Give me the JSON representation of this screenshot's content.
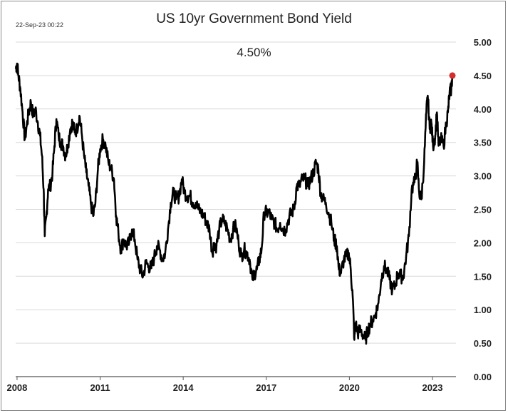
{
  "header": {
    "title": "US 10yr Government Bond Yield",
    "timestamp": "22-Sep-23 00:22",
    "current_value": "4.50%"
  },
  "chart_data": {
    "type": "line",
    "title": "US 10yr Government Bond Yield",
    "xlabel": "",
    "ylabel": "",
    "xlim": [
      2007.95,
      2023.85
    ],
    "ylim": [
      0,
      5
    ],
    "x_ticks": [
      2008,
      2011,
      2014,
      2017,
      2020,
      2023
    ],
    "x_tick_labels": [
      "2008",
      "2011",
      "2014",
      "2017",
      "2020",
      "2023"
    ],
    "y_ticks": [
      0,
      0.5,
      1,
      1.5,
      2,
      2.5,
      3,
      3.5,
      4,
      4.5,
      5
    ],
    "y_tick_labels": [
      "0.00",
      "0.50",
      "1.00",
      "1.50",
      "2.00",
      "2.50",
      "3.00",
      "3.50",
      "4.00",
      "4.50",
      "5.00"
    ],
    "grid": "horizontal",
    "line_color": "#000000",
    "marker_color": "#d32f2f",
    "last_point": {
      "x": 2023.72,
      "y": 4.5
    },
    "series": [
      {
        "values": [
          [
            2007.95,
            4.6
          ],
          [
            2008.0,
            4.68
          ],
          [
            2008.05,
            4.5
          ],
          [
            2008.12,
            4.3
          ],
          [
            2008.2,
            3.95
          ],
          [
            2008.28,
            3.55
          ],
          [
            2008.35,
            3.75
          ],
          [
            2008.42,
            3.95
          ],
          [
            2008.5,
            4.1
          ],
          [
            2008.58,
            3.9
          ],
          [
            2008.66,
            4.0
          ],
          [
            2008.75,
            3.8
          ],
          [
            2008.83,
            3.6
          ],
          [
            2008.9,
            3.3
          ],
          [
            2008.96,
            2.8
          ],
          [
            2009.0,
            2.1
          ],
          [
            2009.06,
            2.4
          ],
          [
            2009.12,
            2.8
          ],
          [
            2009.2,
            2.85
          ],
          [
            2009.28,
            3.05
          ],
          [
            2009.35,
            3.45
          ],
          [
            2009.42,
            3.85
          ],
          [
            2009.5,
            3.6
          ],
          [
            2009.58,
            3.5
          ],
          [
            2009.66,
            3.45
          ],
          [
            2009.75,
            3.3
          ],
          [
            2009.83,
            3.45
          ],
          [
            2009.92,
            3.7
          ],
          [
            2010.0,
            3.8
          ],
          [
            2010.08,
            3.65
          ],
          [
            2010.16,
            3.7
          ],
          [
            2010.25,
            3.9
          ],
          [
            2010.33,
            3.65
          ],
          [
            2010.42,
            3.3
          ],
          [
            2010.5,
            3.05
          ],
          [
            2010.58,
            2.85
          ],
          [
            2010.66,
            2.6
          ],
          [
            2010.75,
            2.4
          ],
          [
            2010.83,
            2.6
          ],
          [
            2010.92,
            3.1
          ],
          [
            2011.0,
            3.4
          ],
          [
            2011.1,
            3.55
          ],
          [
            2011.2,
            3.45
          ],
          [
            2011.3,
            3.2
          ],
          [
            2011.4,
            3.1
          ],
          [
            2011.5,
            2.95
          ],
          [
            2011.58,
            2.4
          ],
          [
            2011.66,
            2.15
          ],
          [
            2011.75,
            1.9
          ],
          [
            2011.85,
            2.05
          ],
          [
            2011.95,
            1.95
          ],
          [
            2012.05,
            2.0
          ],
          [
            2012.15,
            2.2
          ],
          [
            2012.25,
            2.05
          ],
          [
            2012.35,
            1.75
          ],
          [
            2012.45,
            1.6
          ],
          [
            2012.55,
            1.5
          ],
          [
            2012.65,
            1.7
          ],
          [
            2012.75,
            1.65
          ],
          [
            2012.85,
            1.62
          ],
          [
            2012.95,
            1.78
          ],
          [
            2013.05,
            1.95
          ],
          [
            2013.15,
            1.9
          ],
          [
            2013.25,
            1.75
          ],
          [
            2013.35,
            1.85
          ],
          [
            2013.45,
            2.2
          ],
          [
            2013.55,
            2.6
          ],
          [
            2013.65,
            2.75
          ],
          [
            2013.75,
            2.65
          ],
          [
            2013.85,
            2.7
          ],
          [
            2013.95,
            2.95
          ],
          [
            2014.05,
            2.75
          ],
          [
            2014.15,
            2.7
          ],
          [
            2014.25,
            2.7
          ],
          [
            2014.35,
            2.6
          ],
          [
            2014.45,
            2.6
          ],
          [
            2014.55,
            2.5
          ],
          [
            2014.65,
            2.45
          ],
          [
            2014.75,
            2.4
          ],
          [
            2014.85,
            2.3
          ],
          [
            2014.95,
            2.2
          ],
          [
            2015.05,
            1.85
          ],
          [
            2015.12,
            2.0
          ],
          [
            2015.2,
            1.95
          ],
          [
            2015.3,
            2.2
          ],
          [
            2015.4,
            2.35
          ],
          [
            2015.5,
            2.3
          ],
          [
            2015.6,
            2.2
          ],
          [
            2015.7,
            2.05
          ],
          [
            2015.8,
            2.2
          ],
          [
            2015.9,
            2.25
          ],
          [
            2016.0,
            2.0
          ],
          [
            2016.1,
            1.8
          ],
          [
            2016.2,
            1.9
          ],
          [
            2016.3,
            1.85
          ],
          [
            2016.4,
            1.75
          ],
          [
            2016.5,
            1.45
          ],
          [
            2016.58,
            1.55
          ],
          [
            2016.66,
            1.6
          ],
          [
            2016.75,
            1.75
          ],
          [
            2016.83,
            1.9
          ],
          [
            2016.92,
            2.45
          ],
          [
            2017.0,
            2.45
          ],
          [
            2017.1,
            2.45
          ],
          [
            2017.2,
            2.35
          ],
          [
            2017.3,
            2.3
          ],
          [
            2017.4,
            2.2
          ],
          [
            2017.5,
            2.3
          ],
          [
            2017.6,
            2.2
          ],
          [
            2017.7,
            2.2
          ],
          [
            2017.8,
            2.35
          ],
          [
            2017.9,
            2.45
          ],
          [
            2018.0,
            2.5
          ],
          [
            2018.1,
            2.85
          ],
          [
            2018.2,
            2.85
          ],
          [
            2018.3,
            2.95
          ],
          [
            2018.4,
            2.95
          ],
          [
            2018.5,
            2.85
          ],
          [
            2018.6,
            2.95
          ],
          [
            2018.7,
            3.05
          ],
          [
            2018.8,
            3.2
          ],
          [
            2018.88,
            3.1
          ],
          [
            2018.96,
            2.75
          ],
          [
            2019.05,
            2.65
          ],
          [
            2019.15,
            2.6
          ],
          [
            2019.25,
            2.45
          ],
          [
            2019.35,
            2.3
          ],
          [
            2019.45,
            2.05
          ],
          [
            2019.55,
            1.95
          ],
          [
            2019.62,
            1.6
          ],
          [
            2019.7,
            1.55
          ],
          [
            2019.8,
            1.75
          ],
          [
            2019.9,
            1.8
          ],
          [
            2019.98,
            1.85
          ],
          [
            2020.05,
            1.6
          ],
          [
            2020.12,
            1.2
          ],
          [
            2020.18,
            0.55
          ],
          [
            2020.22,
            0.8
          ],
          [
            2020.3,
            0.65
          ],
          [
            2020.4,
            0.7
          ],
          [
            2020.5,
            0.62
          ],
          [
            2020.58,
            0.55
          ],
          [
            2020.66,
            0.68
          ],
          [
            2020.75,
            0.78
          ],
          [
            2020.85,
            0.85
          ],
          [
            2020.95,
            0.95
          ],
          [
            2021.05,
            1.1
          ],
          [
            2021.15,
            1.45
          ],
          [
            2021.25,
            1.65
          ],
          [
            2021.35,
            1.6
          ],
          [
            2021.45,
            1.45
          ],
          [
            2021.55,
            1.3
          ],
          [
            2021.65,
            1.35
          ],
          [
            2021.75,
            1.55
          ],
          [
            2021.85,
            1.5
          ],
          [
            2021.95,
            1.5
          ],
          [
            2022.05,
            1.8
          ],
          [
            2022.15,
            2.1
          ],
          [
            2022.25,
            2.8
          ],
          [
            2022.35,
            2.9
          ],
          [
            2022.45,
            3.2
          ],
          [
            2022.52,
            2.75
          ],
          [
            2022.6,
            2.65
          ],
          [
            2022.7,
            3.2
          ],
          [
            2022.78,
            3.95
          ],
          [
            2022.83,
            4.2
          ],
          [
            2022.9,
            3.7
          ],
          [
            2022.96,
            3.8
          ],
          [
            2023.02,
            3.45
          ],
          [
            2023.1,
            3.6
          ],
          [
            2023.16,
            3.95
          ],
          [
            2023.22,
            3.45
          ],
          [
            2023.3,
            3.55
          ],
          [
            2023.4,
            3.45
          ],
          [
            2023.5,
            3.8
          ],
          [
            2023.56,
            3.95
          ],
          [
            2023.62,
            4.25
          ],
          [
            2023.68,
            4.3
          ],
          [
            2023.72,
            4.5
          ]
        ]
      }
    ]
  }
}
